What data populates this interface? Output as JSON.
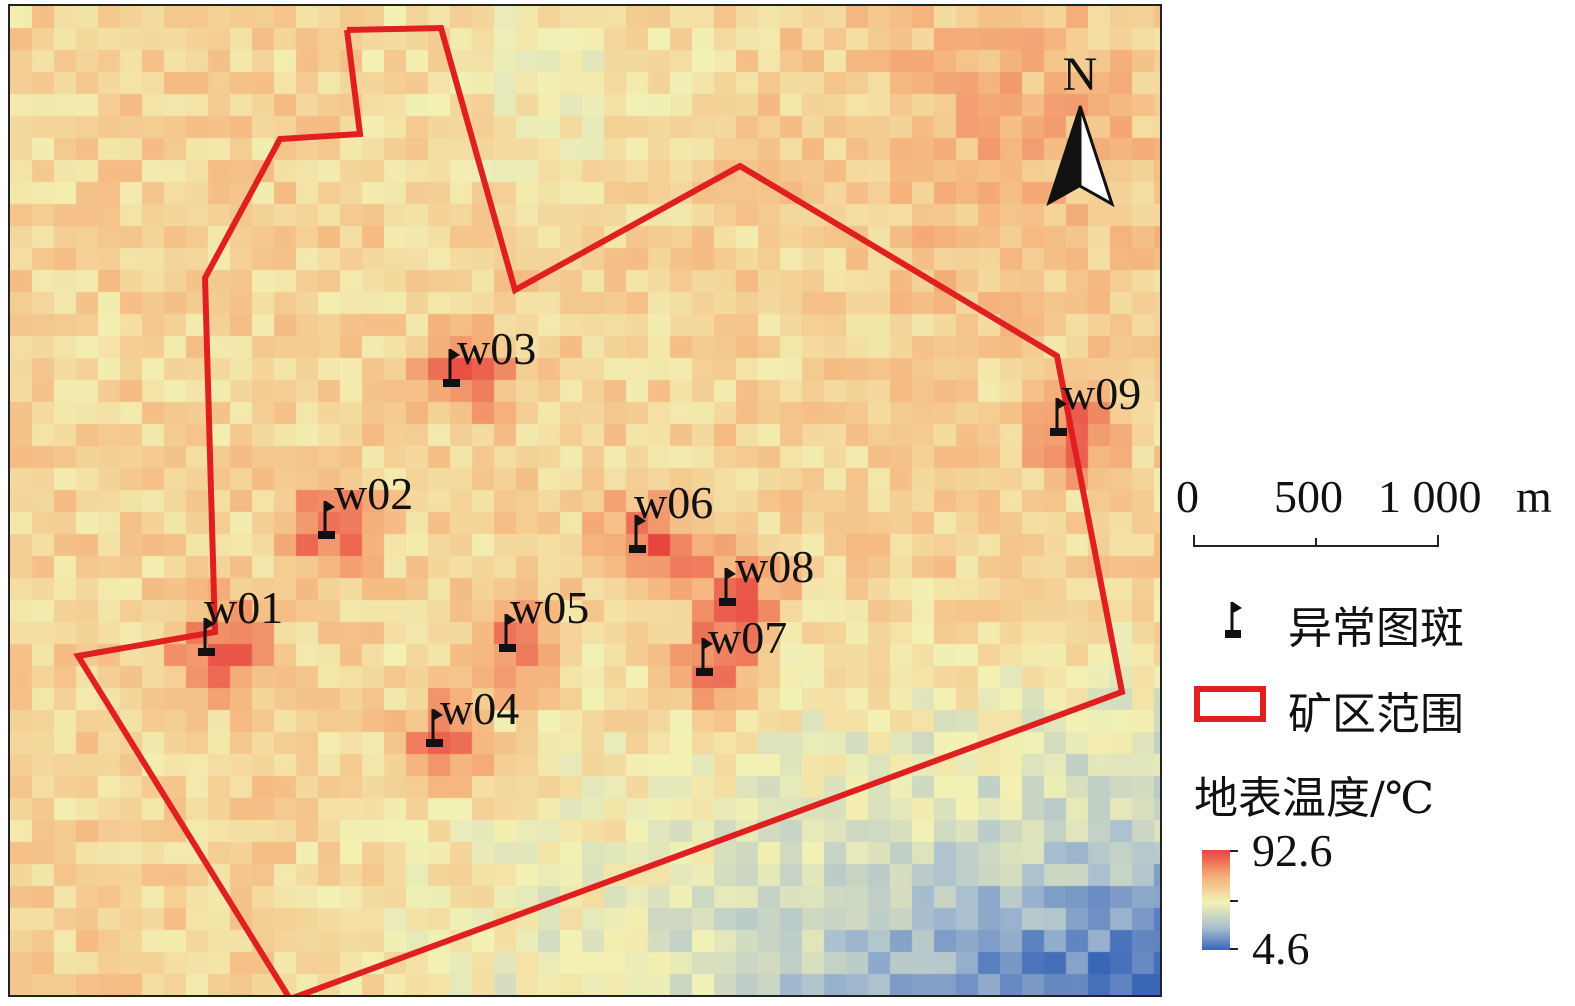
{
  "map": {
    "north_label": "N",
    "sites": [
      {
        "id": "w01",
        "label": "w01"
      },
      {
        "id": "w02",
        "label": "w02"
      },
      {
        "id": "w03",
        "label": "w03"
      },
      {
        "id": "w04",
        "label": "w04"
      },
      {
        "id": "w05",
        "label": "w05"
      },
      {
        "id": "w06",
        "label": "w06"
      },
      {
        "id": "w07",
        "label": "w07"
      },
      {
        "id": "w08",
        "label": "w08"
      },
      {
        "id": "w09",
        "label": "w09"
      }
    ],
    "boundary_color": "#e02020",
    "colormap": [
      "#3a66b8",
      "#a9bfd0",
      "#f3f2b4",
      "#f5b37c",
      "#e8443e"
    ]
  },
  "scale_bar": {
    "labels": [
      "0",
      "500",
      "1 000",
      "m"
    ]
  },
  "legend": {
    "anomaly_label": "异常图斑",
    "boundary_label": "矿区范围",
    "lst_title": "地表温度/℃",
    "max_label": "92.6",
    "min_label": "4.6"
  }
}
